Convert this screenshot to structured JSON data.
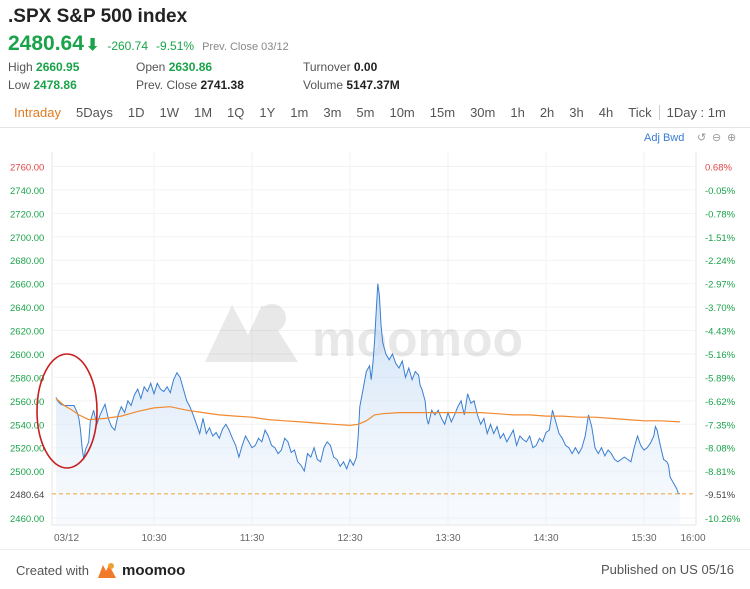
{
  "header": {
    "title": ".SPX S&P 500 index",
    "price": "2480.64",
    "change": "-260.74",
    "change_pct": "-9.51%",
    "prev_close_label": "Prev. Close 03/12"
  },
  "stats": [
    {
      "label": "High",
      "value": "2660.95",
      "color": "green"
    },
    {
      "label": "Open",
      "value": "2630.86",
      "color": "green"
    },
    {
      "label": "Turnover",
      "value": "0.00",
      "color": "dark"
    },
    {
      "label": "Low",
      "value": "2478.86",
      "color": "green"
    },
    {
      "label": "Prev. Close",
      "value": "2741.38",
      "color": "dark"
    },
    {
      "label": "Volume",
      "value": "5147.37M",
      "color": "dark"
    }
  ],
  "tabs": [
    "Intraday",
    "5Days",
    "1D",
    "1W",
    "1M",
    "1Q",
    "1Y",
    "1m",
    "3m",
    "5m",
    "10m",
    "15m",
    "30m",
    "1h",
    "2h",
    "3h",
    "4h",
    "Tick",
    "1Day : 1m"
  ],
  "active_tab": "Intraday",
  "adj_label": "Adj Bwd",
  "watermark": "moomoo",
  "footer": {
    "created_with": "Created with",
    "brand": "moomoo",
    "published": "Published on US 05/16"
  },
  "colors": {
    "up": "#e04646",
    "down": "#1aa34a",
    "price_line": "#3a7fd0",
    "avg_line": "#f08a30",
    "annotation_circle": "#c81e1e"
  },
  "chart_data": {
    "type": "line",
    "ylim": [
      2455,
      2770
    ],
    "y_ticks_left": [
      "2760.00",
      "2740.00",
      "2720.00",
      "2700.00",
      "2680.00",
      "2660.00",
      "2640.00",
      "2620.00",
      "2600.00",
      "2580.00",
      "2560.00",
      "2540.00",
      "2520.00",
      "2500.00",
      "2480.64",
      "2460.00"
    ],
    "y_ticks_right": [
      "0.68%",
      "-0.05%",
      "-0.78%",
      "-1.51%",
      "-2.24%",
      "-2.97%",
      "-3.70%",
      "-4.43%",
      "-5.16%",
      "-5.89%",
      "-6.62%",
      "-7.35%",
      "-8.08%",
      "-8.81%",
      "-9.51%",
      "-10.26%"
    ],
    "x_range_minutes": [
      570,
      960
    ],
    "x_ticks": [
      {
        "label": "03/12",
        "t": 570
      },
      {
        "label": "10:30",
        "t": 630
      },
      {
        "label": "11:30",
        "t": 690
      },
      {
        "label": "12:30",
        "t": 750
      },
      {
        "label": "13:30",
        "t": 810
      },
      {
        "label": "14:30",
        "t": 870
      },
      {
        "label": "15:30",
        "t": 930
      },
      {
        "label": "16:00",
        "t": 960
      }
    ],
    "current_price": 2480.64,
    "series": [
      {
        "key": "price",
        "points": [
          [
            570,
            2563
          ],
          [
            571,
            2560
          ],
          [
            573,
            2557
          ],
          [
            575,
            2556
          ],
          [
            578,
            2556
          ],
          [
            581,
            2556
          ],
          [
            583,
            2550
          ],
          [
            584,
            2545
          ],
          [
            585,
            2535
          ],
          [
            586,
            2520
          ],
          [
            587,
            2510
          ],
          [
            588,
            2518
          ],
          [
            590,
            2525
          ],
          [
            591,
            2542
          ],
          [
            593,
            2552
          ],
          [
            595,
            2540
          ],
          [
            597,
            2548
          ],
          [
            600,
            2557
          ],
          [
            602,
            2545
          ],
          [
            604,
            2538
          ],
          [
            606,
            2535
          ],
          [
            608,
            2548
          ],
          [
            610,
            2555
          ],
          [
            612,
            2550
          ],
          [
            614,
            2560
          ],
          [
            616,
            2556
          ],
          [
            618,
            2565
          ],
          [
            620,
            2570
          ],
          [
            622,
            2562
          ],
          [
            624,
            2572
          ],
          [
            626,
            2568
          ],
          [
            628,
            2575
          ],
          [
            630,
            2566
          ],
          [
            632,
            2575
          ],
          [
            634,
            2570
          ],
          [
            636,
            2568
          ],
          [
            638,
            2572
          ],
          [
            640,
            2567
          ],
          [
            642,
            2578
          ],
          [
            644,
            2584
          ],
          [
            646,
            2580
          ],
          [
            648,
            2570
          ],
          [
            650,
            2560
          ],
          [
            652,
            2555
          ],
          [
            654,
            2548
          ],
          [
            656,
            2540
          ],
          [
            658,
            2532
          ],
          [
            660,
            2545
          ],
          [
            662,
            2532
          ],
          [
            664,
            2537
          ],
          [
            666,
            2530
          ],
          [
            668,
            2533
          ],
          [
            670,
            2528
          ],
          [
            672,
            2536
          ],
          [
            674,
            2540
          ],
          [
            676,
            2535
          ],
          [
            678,
            2528
          ],
          [
            680,
            2522
          ],
          [
            682,
            2512
          ],
          [
            684,
            2522
          ],
          [
            686,
            2530
          ],
          [
            688,
            2525
          ],
          [
            690,
            2520
          ],
          [
            692,
            2522
          ],
          [
            694,
            2528
          ],
          [
            696,
            2525
          ],
          [
            698,
            2535
          ],
          [
            700,
            2530
          ],
          [
            702,
            2522
          ],
          [
            704,
            2520
          ],
          [
            706,
            2515
          ],
          [
            708,
            2518
          ],
          [
            710,
            2528
          ],
          [
            712,
            2525
          ],
          [
            714,
            2516
          ],
          [
            716,
            2518
          ],
          [
            718,
            2508
          ],
          [
            720,
            2505
          ],
          [
            722,
            2500
          ],
          [
            724,
            2515
          ],
          [
            726,
            2512
          ],
          [
            728,
            2520
          ],
          [
            730,
            2510
          ],
          [
            732,
            2508
          ],
          [
            734,
            2520
          ],
          [
            736,
            2525
          ],
          [
            738,
            2522
          ],
          [
            740,
            2512
          ],
          [
            742,
            2510
          ],
          [
            744,
            2504
          ],
          [
            746,
            2508
          ],
          [
            748,
            2502
          ],
          [
            750,
            2510
          ],
          [
            752,
            2505
          ],
          [
            754,
            2512
          ],
          [
            755,
            2530
          ],
          [
            756,
            2555
          ],
          [
            758,
            2570
          ],
          [
            760,
            2585
          ],
          [
            762,
            2590
          ],
          [
            763,
            2578
          ],
          [
            764,
            2592
          ],
          [
            765,
            2610
          ],
          [
            766,
            2635
          ],
          [
            767,
            2660
          ],
          [
            768,
            2650
          ],
          [
            769,
            2625
          ],
          [
            770,
            2610
          ],
          [
            772,
            2600
          ],
          [
            774,
            2595
          ],
          [
            776,
            2600
          ],
          [
            778,
            2592
          ],
          [
            780,
            2588
          ],
          [
            782,
            2594
          ],
          [
            784,
            2580
          ],
          [
            786,
            2588
          ],
          [
            788,
            2578
          ],
          [
            790,
            2585
          ],
          [
            792,
            2582
          ],
          [
            793,
            2573
          ],
          [
            794,
            2570
          ],
          [
            796,
            2560
          ],
          [
            797,
            2545
          ],
          [
            798,
            2540
          ],
          [
            800,
            2552
          ],
          [
            802,
            2548
          ],
          [
            804,
            2552
          ],
          [
            806,
            2545
          ],
          [
            808,
            2540
          ],
          [
            810,
            2550
          ],
          [
            812,
            2542
          ],
          [
            814,
            2548
          ],
          [
            816,
            2555
          ],
          [
            818,
            2560
          ],
          [
            820,
            2548
          ],
          [
            822,
            2566
          ],
          [
            824,
            2558
          ],
          [
            826,
            2560
          ],
          [
            828,
            2548
          ],
          [
            830,
            2540
          ],
          [
            832,
            2545
          ],
          [
            834,
            2532
          ],
          [
            836,
            2540
          ],
          [
            838,
            2532
          ],
          [
            840,
            2538
          ],
          [
            842,
            2528
          ],
          [
            844,
            2532
          ],
          [
            846,
            2525
          ],
          [
            848,
            2530
          ],
          [
            850,
            2535
          ],
          [
            852,
            2522
          ],
          [
            854,
            2530
          ],
          [
            856,
            2527
          ],
          [
            858,
            2525
          ],
          [
            860,
            2530
          ],
          [
            862,
            2520
          ],
          [
            864,
            2522
          ],
          [
            866,
            2528
          ],
          [
            868,
            2525
          ],
          [
            870,
            2533
          ],
          [
            872,
            2535
          ],
          [
            874,
            2552
          ],
          [
            876,
            2542
          ],
          [
            878,
            2532
          ],
          [
            880,
            2528
          ],
          [
            882,
            2522
          ],
          [
            884,
            2520
          ],
          [
            886,
            2515
          ],
          [
            888,
            2520
          ],
          [
            890,
            2515
          ],
          [
            892,
            2520
          ],
          [
            894,
            2530
          ],
          [
            896,
            2548
          ],
          [
            898,
            2538
          ],
          [
            900,
            2520
          ],
          [
            902,
            2515
          ],
          [
            904,
            2520
          ],
          [
            906,
            2513
          ],
          [
            908,
            2518
          ],
          [
            910,
            2515
          ],
          [
            912,
            2510
          ],
          [
            914,
            2508
          ],
          [
            916,
            2510
          ],
          [
            918,
            2512
          ],
          [
            920,
            2510
          ],
          [
            922,
            2508
          ],
          [
            924,
            2520
          ],
          [
            926,
            2530
          ],
          [
            928,
            2522
          ],
          [
            930,
            2518
          ],
          [
            932,
            2520
          ],
          [
            934,
            2524
          ],
          [
            936,
            2530
          ],
          [
            937,
            2538
          ],
          [
            938,
            2535
          ],
          [
            940,
            2522
          ],
          [
            942,
            2510
          ],
          [
            944,
            2508
          ],
          [
            945,
            2505
          ],
          [
            946,
            2495
          ],
          [
            948,
            2490
          ],
          [
            950,
            2485
          ],
          [
            951,
            2481
          ],
          [
            952,
            2480.64
          ]
        ]
      },
      {
        "key": "average",
        "points": [
          [
            570,
            2562
          ],
          [
            575,
            2556
          ],
          [
            580,
            2552
          ],
          [
            584,
            2548
          ],
          [
            590,
            2544
          ],
          [
            600,
            2545
          ],
          [
            610,
            2547
          ],
          [
            620,
            2551
          ],
          [
            630,
            2554
          ],
          [
            640,
            2555
          ],
          [
            650,
            2552
          ],
          [
            660,
            2550
          ],
          [
            670,
            2548
          ],
          [
            680,
            2547
          ],
          [
            690,
            2546
          ],
          [
            700,
            2544
          ],
          [
            710,
            2543
          ],
          [
            720,
            2542
          ],
          [
            730,
            2541
          ],
          [
            740,
            2540
          ],
          [
            750,
            2539
          ],
          [
            755,
            2540
          ],
          [
            760,
            2543
          ],
          [
            765,
            2548
          ],
          [
            770,
            2549
          ],
          [
            780,
            2550
          ],
          [
            790,
            2550
          ],
          [
            800,
            2550
          ],
          [
            810,
            2550
          ],
          [
            820,
            2550
          ],
          [
            830,
            2550
          ],
          [
            840,
            2549
          ],
          [
            850,
            2548
          ],
          [
            860,
            2548
          ],
          [
            870,
            2547
          ],
          [
            880,
            2547
          ],
          [
            890,
            2546
          ],
          [
            900,
            2546
          ],
          [
            910,
            2545
          ],
          [
            920,
            2544
          ],
          [
            930,
            2543
          ],
          [
            940,
            2543
          ],
          [
            952,
            2542
          ]
        ]
      }
    ]
  }
}
